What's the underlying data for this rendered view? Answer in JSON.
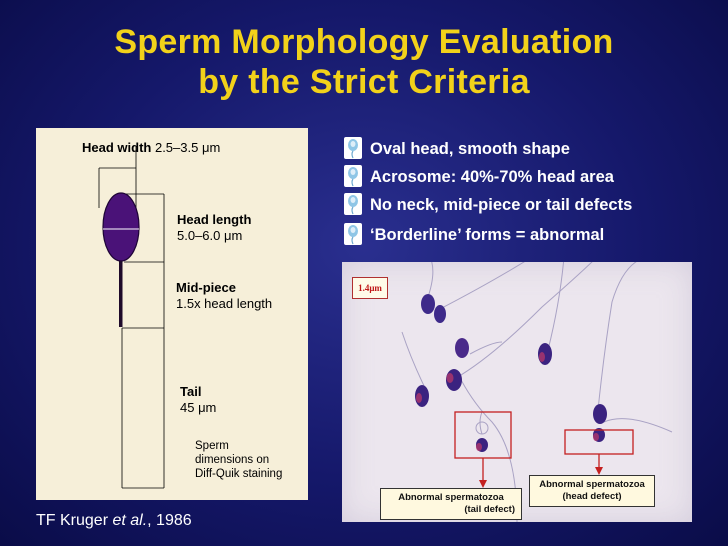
{
  "slide": {
    "title_line1": "Sperm Morphology Evaluation",
    "title_line2": "by the Strict Criteria",
    "colors": {
      "background": "#15186a",
      "title": "#f2d21a",
      "panel": "#f6efd9",
      "head": "#4a1278"
    }
  },
  "diagram": {
    "head_width_label": "Head width",
    "head_width_value": "2.5–3.5 μm",
    "head_length_label": "Head length",
    "head_length_value": "5.0–6.0 μm",
    "midpiece_label": "Mid-piece",
    "midpiece_value": "1.5x head length",
    "tail_label": "Tail",
    "tail_value": "45 μm",
    "staining_line1": "Sperm",
    "staining_line2": "dimensions on",
    "staining_line3": "Diff-Quik staining"
  },
  "criteria": {
    "bullet_icon": "sperm-bullet-icon",
    "items": [
      {
        "text": "Oval head, smooth shape"
      },
      {
        "text": "Acrosome: 40%-70% head area"
      },
      {
        "text": "No neck, mid-piece or tail defects"
      },
      {
        "text": "‘Borderline’ forms = abnormal"
      }
    ]
  },
  "micrograph": {
    "scale_label": "1.4μm",
    "tail_defect_line1": "Abnormal spermatozoa",
    "tail_defect_line2": "(tail defect)",
    "head_defect_line1": "Abnormal spermatozoa",
    "head_defect_line2": "(head defect)"
  },
  "reference": {
    "author": "TF Kruger",
    "etal": "et al.",
    "year": ", 1986"
  }
}
